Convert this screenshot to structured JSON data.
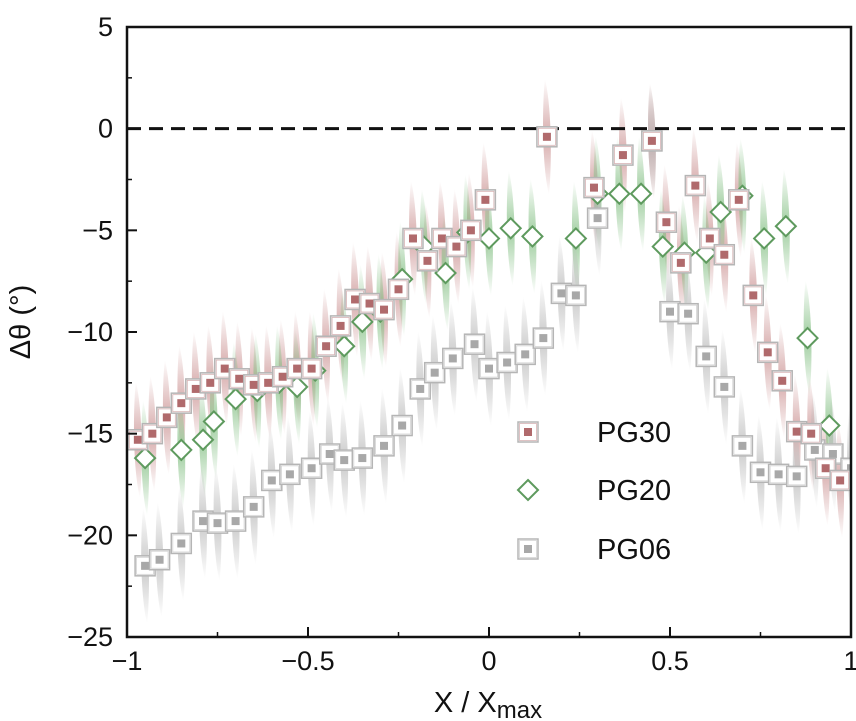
{
  "chart_data": {
    "type": "scatter",
    "xlabel": "X / X",
    "xlabel_subscript": "max",
    "ylabel": "Δθ (°)",
    "xlim": [
      -1,
      1
    ],
    "ylim": [
      -25,
      5
    ],
    "xticks": [
      -1,
      -0.5,
      0,
      0.5,
      1
    ],
    "xtick_labels": [
      "−1",
      "−0.5",
      "0",
      "0.5",
      "1"
    ],
    "yticks": [
      5,
      0,
      -5,
      -10,
      -15,
      -20,
      -25
    ],
    "ytick_labels": [
      "5",
      "0",
      "−5",
      "−10",
      "−15",
      "−20",
      "−25"
    ],
    "reference_line": {
      "y": 0,
      "style": "dashed"
    },
    "grid": false,
    "legend_position": "lower-right",
    "series": [
      {
        "name": "PG30",
        "marker": "square-dot",
        "color": "#b06a6c",
        "band_color": "#c98e8e",
        "x": [
          -0.97,
          -0.93,
          -0.89,
          -0.85,
          -0.81,
          -0.77,
          -0.73,
          -0.69,
          -0.65,
          -0.61,
          -0.57,
          -0.53,
          -0.49,
          -0.45,
          -0.41,
          -0.37,
          -0.33,
          -0.29,
          -0.25,
          -0.21,
          -0.17,
          -0.13,
          -0.09,
          -0.05,
          -0.01,
          0.16,
          0.29,
          0.37,
          0.45,
          0.49,
          0.53,
          0.57,
          0.61,
          0.65,
          0.69,
          0.73,
          0.77,
          0.81,
          0.85,
          0.89,
          0.93,
          0.97
        ],
        "y": [
          -15.3,
          -15.0,
          -14.2,
          -13.5,
          -12.8,
          -12.5,
          -11.8,
          -12.3,
          -12.6,
          -12.5,
          -12.2,
          -11.8,
          -11.8,
          -10.7,
          -9.7,
          -8.4,
          -8.6,
          -8.9,
          -7.9,
          -5.4,
          -6.5,
          -5.4,
          -5.8,
          -5.0,
          -3.5,
          -0.4,
          -2.9,
          -1.3,
          -0.6,
          -4.6,
          -6.6,
          -2.8,
          -5.4,
          -6.2,
          -3.5,
          -8.2,
          -11.0,
          -12.4,
          -14.9,
          -15.0,
          -16.7,
          -17.3
        ]
      },
      {
        "name": "PG20",
        "marker": "diamond",
        "color": "#5e9a5e",
        "band_color": "#7fbd7f",
        "x": [
          -0.95,
          -0.85,
          -0.79,
          -0.76,
          -0.7,
          -0.64,
          -0.58,
          -0.53,
          -0.48,
          -0.4,
          -0.35,
          -0.3,
          -0.24,
          -0.18,
          -0.12,
          -0.06,
          0.0,
          0.06,
          0.12,
          0.24,
          0.3,
          0.36,
          0.42,
          0.48,
          0.54,
          0.6,
          0.64,
          0.7,
          0.76,
          0.82,
          0.88,
          0.94
        ],
        "y": [
          -16.2,
          -15.8,
          -15.3,
          -14.4,
          -13.3,
          -12.9,
          -12.5,
          -12.7,
          -11.9,
          -10.7,
          -9.5,
          -9.0,
          -7.4,
          -5.8,
          -7.1,
          -5.1,
          -5.4,
          -4.9,
          -5.3,
          -5.4,
          -3.2,
          -3.2,
          -3.2,
          -5.8,
          -6.1,
          -6.1,
          -4.1,
          -3.3,
          -5.4,
          -4.8,
          -10.3,
          -14.6
        ]
      },
      {
        "name": "PG06",
        "marker": "square-dot",
        "color": "#a8a8a8",
        "band_color": "#b8b8b8",
        "x": [
          -0.95,
          -0.91,
          -0.85,
          -0.79,
          -0.75,
          -0.7,
          -0.65,
          -0.6,
          -0.55,
          -0.49,
          -0.44,
          -0.4,
          -0.35,
          -0.29,
          -0.24,
          -0.19,
          -0.15,
          -0.1,
          -0.04,
          0.0,
          0.05,
          0.1,
          0.15,
          0.2,
          0.24,
          0.3,
          0.45,
          0.5,
          0.55,
          0.6,
          0.65,
          0.7,
          0.75,
          0.8,
          0.85,
          0.9,
          0.95,
          1.0
        ],
        "y": [
          -21.5,
          -21.2,
          -20.4,
          -19.3,
          -19.4,
          -19.3,
          -18.6,
          -17.3,
          -17.0,
          -16.7,
          -16.0,
          -16.3,
          -16.2,
          -15.6,
          -14.6,
          -12.8,
          -12.0,
          -11.3,
          -10.6,
          -11.8,
          -11.5,
          -11.1,
          -10.3,
          -8.1,
          -8.2,
          -4.4,
          -0.6,
          -9.0,
          -9.1,
          -11.2,
          -12.7,
          -15.6,
          -16.9,
          -17.0,
          -17.1,
          -15.8,
          -16.0,
          -16.7
        ]
      }
    ]
  }
}
